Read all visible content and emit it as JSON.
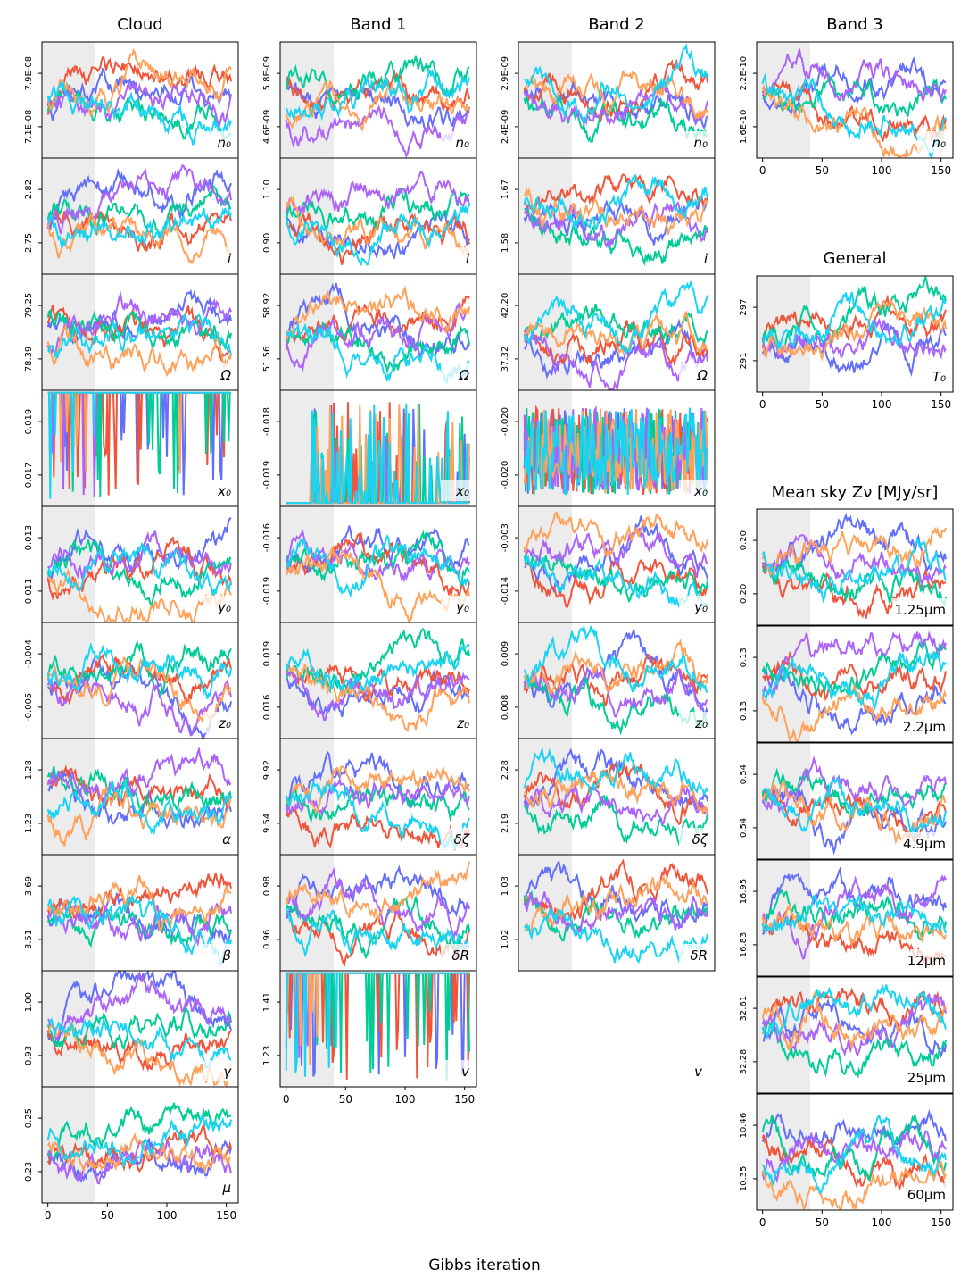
{
  "figure": {
    "xlabel": "Gibbs iteration",
    "burnin_iterations": 40,
    "x_range": [
      -5,
      160
    ],
    "x_ticks": [
      0,
      50,
      100,
      150
    ],
    "n_iterations": 155,
    "chain_colors": [
      "#636efa",
      "#ef553b",
      "#00cc96",
      "#ab63fa",
      "#ffa15a",
      "#19d3f3"
    ],
    "burnin_color": "#ececec"
  },
  "columns": [
    {
      "title": "Cloud"
    },
    {
      "title": "Band 1"
    },
    {
      "title": "Band 2"
    },
    {
      "title": "Band 3"
    }
  ],
  "extra_titles": {
    "general": "General",
    "mean_sky": "Mean sky Zν [MJy/sr]"
  },
  "chart_data": [
    {
      "type": "line",
      "panel": "cloud-n0",
      "label": "n₀",
      "yticks": [
        "7.9E-08",
        "7.1E-08"
      ],
      "range": [
        7e-08,
        8.2e-08
      ]
    },
    {
      "type": "line",
      "panel": "cloud-i",
      "label": "i",
      "yticks": [
        "2.82",
        "2.75"
      ],
      "range": [
        2.735,
        2.84
      ]
    },
    {
      "type": "line",
      "panel": "cloud-Omega",
      "label": "Ω",
      "yticks": [
        "79.25",
        "78.39"
      ],
      "range": [
        78.2,
        79.5
      ]
    },
    {
      "type": "line",
      "panel": "cloud-x0",
      "label": "x₀",
      "yticks": [
        "0.019",
        "0.017"
      ],
      "range": [
        0.0165,
        0.02
      ]
    },
    {
      "type": "line",
      "panel": "cloud-y0",
      "label": "y₀",
      "yticks": [
        "0.013",
        "0.011"
      ],
      "range": [
        0.0107,
        0.0139
      ]
    },
    {
      "type": "line",
      "panel": "cloud-z0",
      "label": "z₀",
      "yticks": [
        "-0.004",
        "-0.005"
      ],
      "range": [
        -0.0051,
        -0.0038
      ]
    },
    {
      "type": "line",
      "panel": "cloud-alpha",
      "label": "α",
      "yticks": [
        "1.28",
        "1.23"
      ],
      "range": [
        1.22,
        1.295
      ]
    },
    {
      "type": "line",
      "panel": "cloud-beta",
      "label": "β",
      "yticks": [
        "3.69",
        "3.51"
      ],
      "range": [
        3.48,
        3.76
      ]
    },
    {
      "type": "line",
      "panel": "cloud-gamma",
      "label": "γ",
      "yticks": [
        "1.00",
        "0.93"
      ],
      "range": [
        0.915,
        1.025
      ]
    },
    {
      "type": "line",
      "panel": "cloud-mu",
      "label": "μ",
      "yticks": [
        "0.25",
        "0.23"
      ],
      "range": [
        0.226,
        0.258
      ]
    },
    {
      "type": "line",
      "panel": "band1-n0",
      "label": "n₀",
      "yticks": [
        "5.8E-09",
        "4.6E-09"
      ],
      "range": [
        4.4e-09,
        6.3e-09
      ]
    },
    {
      "type": "line",
      "panel": "band1-i",
      "label": "i",
      "yticks": [
        "1.10",
        "0.90"
      ],
      "range": [
        0.85,
        1.18
      ]
    },
    {
      "type": "line",
      "panel": "band1-Omega",
      "label": "Ω",
      "yticks": [
        "58.92",
        "51.56"
      ],
      "range": [
        50.0,
        61.5
      ]
    },
    {
      "type": "line",
      "panel": "band1-x0",
      "label": "x₀",
      "yticks": [
        "-0.018",
        "-0.019"
      ],
      "range": [
        -0.01925,
        -0.01775
      ]
    },
    {
      "type": "line",
      "panel": "band1-y0",
      "label": "y₀",
      "yticks": [
        "-0.016",
        "-0.019"
      ],
      "range": [
        -0.0195,
        -0.015
      ]
    },
    {
      "type": "line",
      "panel": "band1-z0",
      "label": "z₀",
      "yticks": [
        "0.019",
        "0.016"
      ],
      "range": [
        0.0155,
        0.0205
      ]
    },
    {
      "type": "line",
      "panel": "band1-dzeta",
      "label": "δζ",
      "yticks": [
        "9.92",
        "9.54"
      ],
      "range": [
        9.45,
        10.05
      ]
    },
    {
      "type": "line",
      "panel": "band1-dR",
      "label": "δR",
      "yticks": [
        "0.98",
        "0.96"
      ],
      "range": [
        0.954,
        0.986
      ]
    },
    {
      "type": "line",
      "panel": "band1-v",
      "label": "v",
      "yticks": [
        "1.41",
        "1.23"
      ],
      "range": [
        1.19,
        1.46
      ]
    },
    {
      "type": "line",
      "panel": "band2-n0",
      "label": "n₀",
      "yticks": [
        "2.9E-09",
        "2.4E-09"
      ],
      "range": [
        2.3e-09,
        3.1e-09
      ]
    },
    {
      "type": "line",
      "panel": "band2-i",
      "label": "i",
      "yticks": [
        "1.67",
        "1.58"
      ],
      "range": [
        1.565,
        1.72
      ]
    },
    {
      "type": "line",
      "panel": "band2-Omega",
      "label": "Ω",
      "yticks": [
        "42.20",
        "37.32"
      ],
      "range": [
        36.0,
        44.5
      ]
    },
    {
      "type": "line",
      "panel": "band2-x0",
      "label": "x₀",
      "yticks": [
        "-0.020",
        "-0.020"
      ],
      "range": [
        -0.02025,
        -0.01975
      ]
    },
    {
      "type": "line",
      "panel": "band2-y0",
      "label": "y₀",
      "yticks": [
        "-0.003",
        "-0.014"
      ],
      "range": [
        -0.0155,
        0.001
      ]
    },
    {
      "type": "line",
      "panel": "band2-z0",
      "label": "z₀",
      "yticks": [
        "0.009",
        "0.008"
      ],
      "range": [
        0.0077,
        0.0098
      ]
    },
    {
      "type": "line",
      "panel": "band2-dzeta",
      "label": "δζ",
      "yticks": [
        "2.28",
        "2.19"
      ],
      "range": [
        2.175,
        2.32
      ]
    },
    {
      "type": "line",
      "panel": "band2-dR",
      "label": "δR",
      "yticks": [
        "1.03",
        "1.02"
      ],
      "range": [
        1.016,
        1.036
      ]
    },
    {
      "type": "line",
      "panel": "band2-v",
      "label": "v",
      "yticks": [],
      "range": [
        0,
        1
      ]
    },
    {
      "type": "line",
      "panel": "band3-n0",
      "label": "n₀",
      "yticks": [
        "2.2E-10",
        "1.6E-10"
      ],
      "range": [
        1.5e-10,
        2.5e-10
      ]
    },
    {
      "type": "line",
      "panel": "general-T0",
      "label": "T₀",
      "yticks": [
        "297",
        "291"
      ],
      "range": [
        288.5,
        300.0
      ]
    },
    {
      "type": "line",
      "panel": "sky-1.25",
      "label": "1.25μm",
      "yticks": [
        "0.20",
        "0.20"
      ],
      "range": [
        0.1985,
        0.2025
      ]
    },
    {
      "type": "line",
      "panel": "sky-2.2",
      "label": "2.2μm",
      "yticks": [
        "0.13",
        "0.13"
      ],
      "range": [
        0.1285,
        0.1318
      ]
    },
    {
      "type": "line",
      "panel": "sky-4.9",
      "label": "4.9μm",
      "yticks": [
        "0.54",
        "0.54"
      ],
      "range": [
        0.5365,
        0.5415
      ]
    },
    {
      "type": "line",
      "panel": "sky-12",
      "label": "12μm",
      "yticks": [
        "16.95",
        "16.83"
      ],
      "range": [
        16.8,
        17.0
      ]
    },
    {
      "type": "line",
      "panel": "sky-25",
      "label": "25μm",
      "yticks": [
        "32.61",
        "32.28"
      ],
      "range": [
        32.18,
        32.75
      ]
    },
    {
      "type": "line",
      "panel": "sky-60",
      "label": "60μm",
      "yticks": [
        "10.46",
        "10.35"
      ],
      "range": [
        10.33,
        10.51
      ]
    }
  ]
}
